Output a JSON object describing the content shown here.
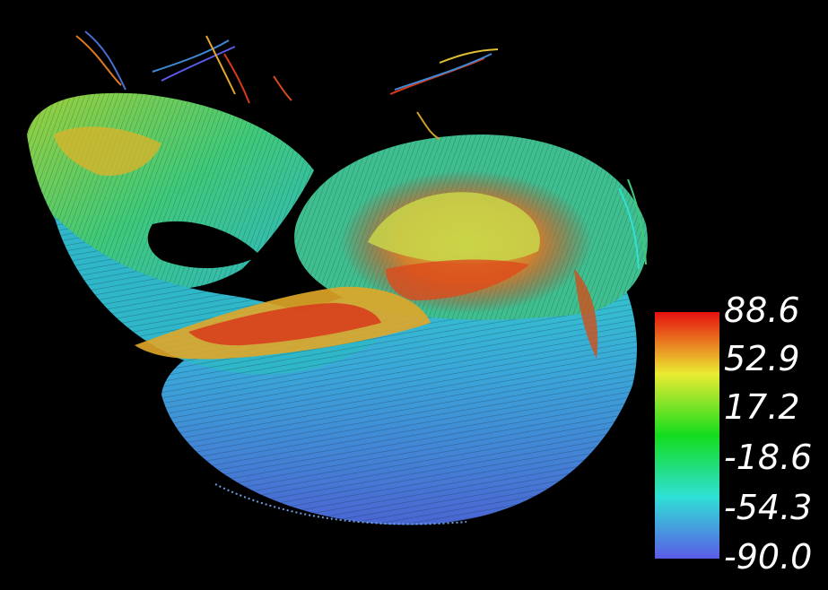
{
  "colorbar": {
    "labels": [
      "88.6",
      "52.9",
      "17.2",
      "-18.6",
      "-54.3",
      "-90.0"
    ],
    "min": -90.0,
    "max": 88.6,
    "colors": [
      "#5a5be6",
      "#2fe0d6",
      "#14dc1e",
      "#ebeb32",
      "#e60f0f"
    ]
  },
  "colors": {
    "background": "#000000",
    "label": "#ffffff"
  }
}
